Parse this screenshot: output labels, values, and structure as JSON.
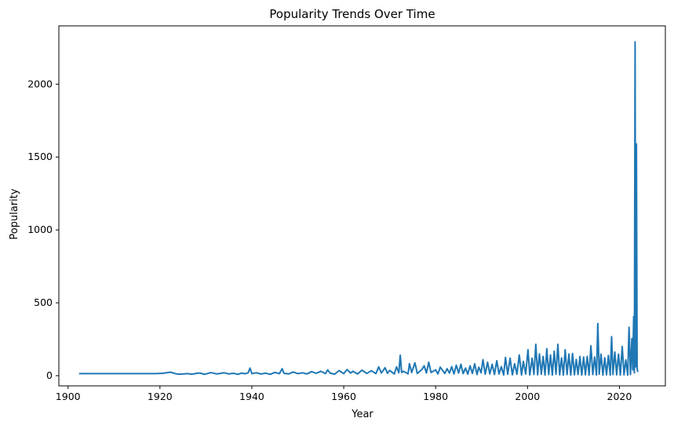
{
  "chart_data": {
    "type": "line",
    "title": "Popularity Trends Over Time",
    "xlabel": "Year",
    "ylabel": "Popularity",
    "xlim": [
      1898,
      2030
    ],
    "ylim": [
      -70,
      2400
    ],
    "xticks": [
      1900,
      1920,
      1940,
      1960,
      1980,
      2000,
      2020
    ],
    "yticks": [
      0,
      500,
      1000,
      1500,
      2000
    ],
    "grid": false,
    "color": "#1f77b4",
    "series": [
      {
        "values": [
          [
            1902.4,
            14
          ],
          [
            1905,
            14
          ],
          [
            1910,
            14
          ],
          [
            1915,
            14
          ],
          [
            1919,
            14
          ],
          [
            1920.5,
            16
          ],
          [
            1921.5,
            20
          ],
          [
            1922.3,
            24
          ],
          [
            1923.2,
            15
          ],
          [
            1924,
            10
          ],
          [
            1925,
            11
          ],
          [
            1926,
            14
          ],
          [
            1926.8,
            10
          ],
          [
            1927.5,
            13
          ],
          [
            1928.3,
            18
          ],
          [
            1929,
            16
          ],
          [
            1929.6,
            9
          ],
          [
            1930.3,
            14
          ],
          [
            1931,
            21
          ],
          [
            1931.7,
            17
          ],
          [
            1932.3,
            12
          ],
          [
            1933,
            15
          ],
          [
            1934,
            20
          ],
          [
            1935,
            12
          ],
          [
            1936,
            16
          ],
          [
            1937,
            9
          ],
          [
            1937.8,
            18
          ],
          [
            1938.5,
            13
          ],
          [
            1939.2,
            20
          ],
          [
            1939.6,
            52
          ],
          [
            1940,
            14
          ],
          [
            1941,
            20
          ],
          [
            1942,
            11
          ],
          [
            1943,
            17
          ],
          [
            1944,
            9
          ],
          [
            1945,
            22
          ],
          [
            1946,
            14
          ],
          [
            1946.6,
            48
          ],
          [
            1947,
            16
          ],
          [
            1948,
            12
          ],
          [
            1949,
            25
          ],
          [
            1950,
            14
          ],
          [
            1951,
            20
          ],
          [
            1952,
            12
          ],
          [
            1953,
            28
          ],
          [
            1954,
            16
          ],
          [
            1955,
            30
          ],
          [
            1956,
            14
          ],
          [
            1956.5,
            40
          ],
          [
            1957,
            18
          ],
          [
            1958,
            10
          ],
          [
            1959,
            35
          ],
          [
            1960,
            14
          ],
          [
            1960.7,
            42
          ],
          [
            1961.5,
            18
          ],
          [
            1962,
            30
          ],
          [
            1963,
            12
          ],
          [
            1964,
            38
          ],
          [
            1965,
            15
          ],
          [
            1966,
            34
          ],
          [
            1967,
            14
          ],
          [
            1967.6,
            60
          ],
          [
            1968.2,
            18
          ],
          [
            1969,
            55
          ],
          [
            1969.5,
            16
          ],
          [
            1970,
            36
          ],
          [
            1971,
            12
          ],
          [
            1971.5,
            60
          ],
          [
            1972,
            20
          ],
          [
            1972.3,
            140
          ],
          [
            1972.6,
            22
          ],
          [
            1973,
            30
          ],
          [
            1974,
            13
          ],
          [
            1974.3,
            82
          ],
          [
            1974.8,
            22
          ],
          [
            1975.5,
            88
          ],
          [
            1976,
            15
          ],
          [
            1977,
            42
          ],
          [
            1977.5,
            68
          ],
          [
            1978,
            18
          ],
          [
            1978.5,
            92
          ],
          [
            1979,
            22
          ],
          [
            1980,
            40
          ],
          [
            1980.5,
            12
          ],
          [
            1981,
            58
          ],
          [
            1982,
            15
          ],
          [
            1982.5,
            48
          ],
          [
            1983,
            18
          ],
          [
            1983.5,
            62
          ],
          [
            1984,
            12
          ],
          [
            1984.5,
            72
          ],
          [
            1985,
            18
          ],
          [
            1985.5,
            78
          ],
          [
            1986,
            14
          ],
          [
            1986.5,
            52
          ],
          [
            1987,
            10
          ],
          [
            1987.5,
            68
          ],
          [
            1988,
            15
          ],
          [
            1988.5,
            82
          ],
          [
            1989,
            8
          ],
          [
            1989.4,
            58
          ],
          [
            1989.9,
            20
          ],
          [
            1990.3,
            110
          ],
          [
            1990.8,
            10
          ],
          [
            1991.3,
            92
          ],
          [
            1991.8,
            12
          ],
          [
            1992.3,
            78
          ],
          [
            1992.8,
            8
          ],
          [
            1993.3,
            102
          ],
          [
            1993.8,
            12
          ],
          [
            1994.3,
            62
          ],
          [
            1994.8,
            5
          ],
          [
            1995.2,
            125
          ],
          [
            1995.7,
            10
          ],
          [
            1996.2,
            120
          ],
          [
            1996.7,
            6
          ],
          [
            1997.2,
            82
          ],
          [
            1997.7,
            10
          ],
          [
            1998.2,
            142
          ],
          [
            1998.7,
            5
          ],
          [
            1999.1,
            98
          ],
          [
            1999.6,
            12
          ],
          [
            2000.1,
            178
          ],
          [
            2000.5,
            5
          ],
          [
            2001,
            120
          ],
          [
            2001.4,
            8
          ],
          [
            2001.8,
            215
          ],
          [
            2002.2,
            6
          ],
          [
            2002.6,
            150
          ],
          [
            2003,
            10
          ],
          [
            2003.4,
            132
          ],
          [
            2003.8,
            5
          ],
          [
            2004.2,
            185
          ],
          [
            2004.6,
            8
          ],
          [
            2005,
            142
          ],
          [
            2005.4,
            4
          ],
          [
            2005.8,
            168
          ],
          [
            2006.2,
            10
          ],
          [
            2006.6,
            215
          ],
          [
            2007,
            6
          ],
          [
            2007.4,
            122
          ],
          [
            2007.8,
            4
          ],
          [
            2008.2,
            178
          ],
          [
            2008.6,
            8
          ],
          [
            2009,
            148
          ],
          [
            2009.4,
            4
          ],
          [
            2009.8,
            152
          ],
          [
            2010.2,
            6
          ],
          [
            2010.6,
            112
          ],
          [
            2011,
            8
          ],
          [
            2011.4,
            132
          ],
          [
            2011.8,
            4
          ],
          [
            2012.2,
            128
          ],
          [
            2012.6,
            6
          ],
          [
            2013,
            132
          ],
          [
            2013.4,
            4
          ],
          [
            2013.8,
            205
          ],
          [
            2014.2,
            8
          ],
          [
            2014.6,
            128
          ],
          [
            2015,
            4
          ],
          [
            2015.3,
            358
          ],
          [
            2015.6,
            10
          ],
          [
            2016,
            148
          ],
          [
            2016.4,
            4
          ],
          [
            2016.8,
            122
          ],
          [
            2017.2,
            6
          ],
          [
            2017.6,
            138
          ],
          [
            2018,
            4
          ],
          [
            2018.3,
            268
          ],
          [
            2018.6,
            8
          ],
          [
            2019,
            162
          ],
          [
            2019.4,
            6
          ],
          [
            2019.8,
            148
          ],
          [
            2020.2,
            4
          ],
          [
            2020.6,
            200
          ],
          [
            2021,
            6
          ],
          [
            2021.4,
            108
          ],
          [
            2021.8,
            4
          ],
          [
            2022.1,
            332
          ],
          [
            2022.4,
            8
          ],
          [
            2022.7,
            255
          ],
          [
            2022.9,
            40
          ],
          [
            2023.1,
            405
          ],
          [
            2023.25,
            20
          ],
          [
            2023.4,
            2290
          ],
          [
            2023.55,
            60
          ],
          [
            2023.7,
            1590
          ],
          [
            2023.85,
            48
          ],
          [
            2024,
            25
          ]
        ]
      }
    ]
  }
}
